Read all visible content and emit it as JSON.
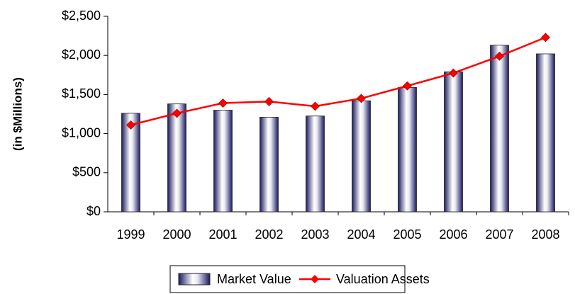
{
  "chart_data": {
    "type": "bar",
    "y_label": "(in $Millions)",
    "categories": [
      "1999",
      "2000",
      "2001",
      "2002",
      "2003",
      "2004",
      "2005",
      "2006",
      "2007",
      "2008"
    ],
    "series": [
      {
        "name": "Market Value",
        "type": "bar",
        "color": "#1a1a5e",
        "values": [
          1260,
          1380,
          1300,
          1210,
          1225,
          1420,
          1590,
          1790,
          2130,
          2020
        ]
      },
      {
        "name": "Valuation Assets",
        "type": "line",
        "color": "#ff0000",
        "values": [
          1110,
          1260,
          1390,
          1410,
          1350,
          1450,
          1610,
          1775,
          1990,
          2230
        ]
      }
    ],
    "ylim": [
      0,
      2500
    ],
    "yticks": [
      {
        "value": 0,
        "label": "$0"
      },
      {
        "value": 500,
        "label": "$500"
      },
      {
        "value": 1000,
        "label": "$1,000"
      },
      {
        "value": 1500,
        "label": "$1,500"
      },
      {
        "value": 2000,
        "label": "$2,000"
      },
      {
        "value": 2500,
        "label": "$2,500"
      }
    ],
    "grid": false,
    "legend": "bottom"
  }
}
